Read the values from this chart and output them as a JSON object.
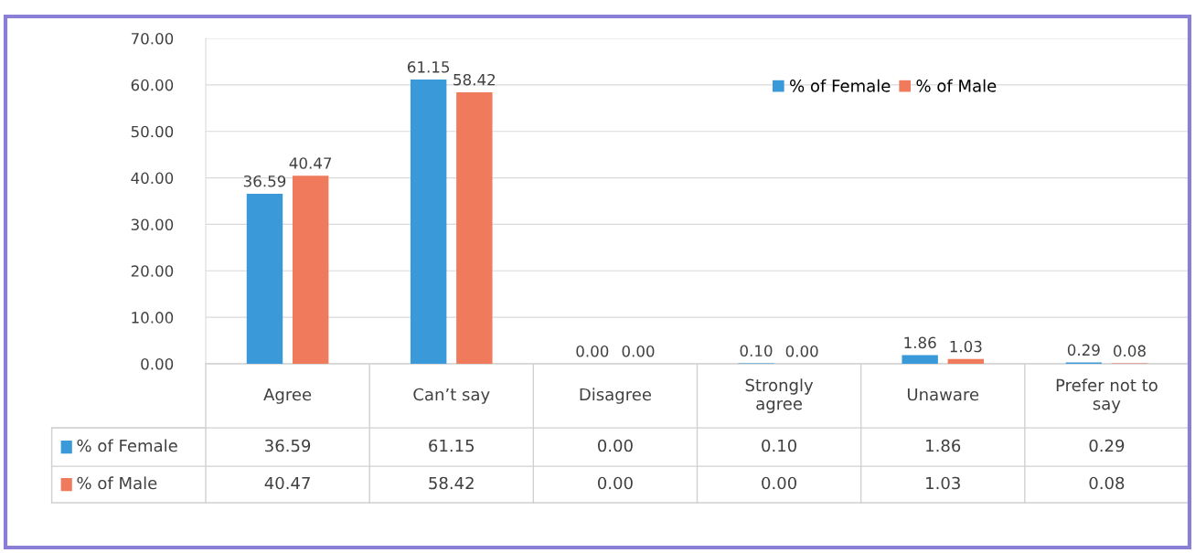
{
  "chart_data": {
    "type": "bar",
    "categories": [
      "Agree",
      "Can’t say",
      "Disagree",
      "Strongly\nagree",
      "Unaware",
      "Prefer not to\nsay"
    ],
    "series": [
      {
        "name": "% of Female",
        "color": "#3a9ad9",
        "values": [
          36.59,
          61.15,
          0.0,
          0.1,
          1.86,
          0.29
        ],
        "value_labels": [
          "36.59",
          "61.15",
          "0.00",
          "0.10",
          "1.86",
          "0.29"
        ]
      },
      {
        "name": "% of Male",
        "color": "#f07a5c",
        "values": [
          40.47,
          58.42,
          0.0,
          0.0,
          1.03,
          0.08
        ],
        "value_labels": [
          "40.47",
          "58.42",
          "0.00",
          "0.00",
          "1.03",
          "0.08"
        ]
      }
    ],
    "ylim": [
      0,
      70
    ],
    "yticks": [
      {
        "value": 0,
        "label": "0.00"
      },
      {
        "value": 10,
        "label": "10.00"
      },
      {
        "value": 20,
        "label": "20.00"
      },
      {
        "value": 30,
        "label": "30.00"
      },
      {
        "value": 40,
        "label": "40.00"
      },
      {
        "value": 50,
        "label": "50.00"
      },
      {
        "value": 60,
        "label": "60.00"
      },
      {
        "value": 70,
        "label": "70.00"
      }
    ],
    "grid": "y",
    "legend": "top right"
  }
}
